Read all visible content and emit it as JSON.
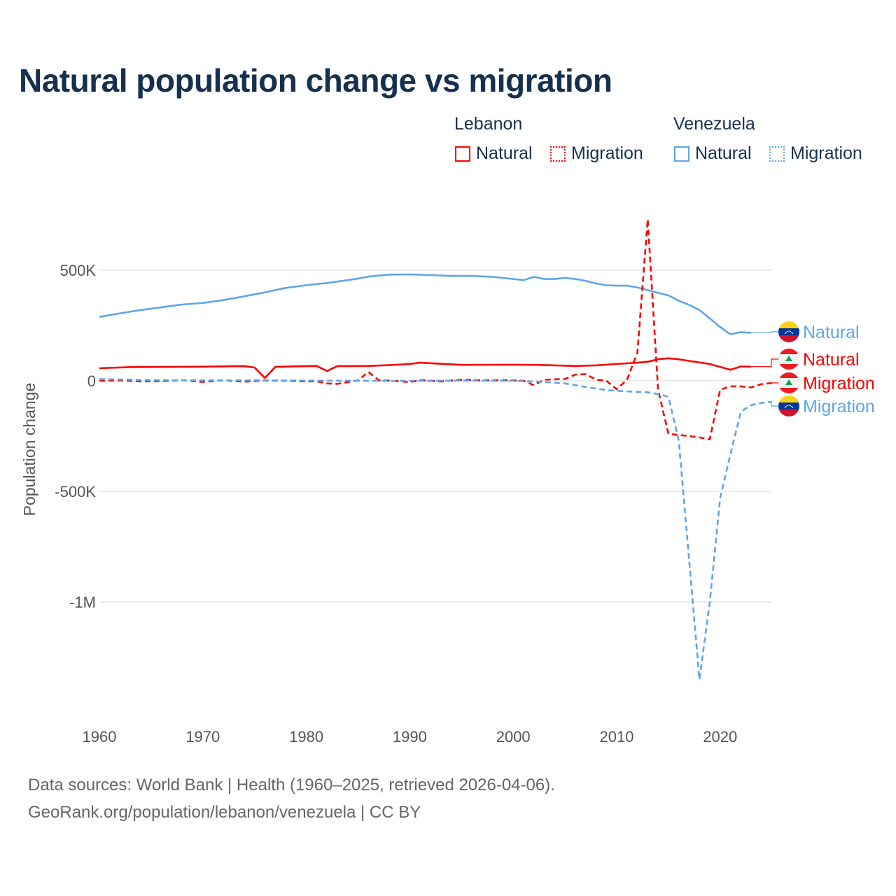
{
  "chart_data": {
    "type": "line",
    "title": "Natural population change vs migration",
    "xlabel": "",
    "ylabel": "Population change",
    "xlim": [
      1960,
      2025
    ],
    "ylim": [
      -1450000,
      800000
    ],
    "x_ticks": [
      1960,
      1970,
      1980,
      1990,
      2000,
      2010,
      2020
    ],
    "x_tick_labels": [
      "1960",
      "1970",
      "1980",
      "1990",
      "2000",
      "2010",
      "2020"
    ],
    "y_ticks": [
      500000,
      0,
      -500000,
      -1000000
    ],
    "y_tick_labels": [
      "500K",
      "0",
      "-500K",
      "-1M"
    ],
    "grid": true,
    "legend": {
      "placement": "top-right",
      "groups": [
        {
          "name": "Lebanon",
          "items": [
            "Natural",
            "Migration"
          ]
        },
        {
          "name": "Venezuela",
          "items": [
            "Natural",
            "Migration"
          ]
        }
      ]
    },
    "series": [
      {
        "country": "Venezuela",
        "name": "Natural",
        "color": "#5ea5ea",
        "dash": false,
        "flag": "venezuela",
        "points": [
          [
            1960,
            289000
          ],
          [
            1962,
            305000
          ],
          [
            1964,
            320000
          ],
          [
            1966,
            332000
          ],
          [
            1968,
            345000
          ],
          [
            1970,
            352000
          ],
          [
            1972,
            365000
          ],
          [
            1974,
            382000
          ],
          [
            1976,
            400000
          ],
          [
            1978,
            420000
          ],
          [
            1980,
            432000
          ],
          [
            1982,
            442000
          ],
          [
            1984,
            455000
          ],
          [
            1985,
            462000
          ],
          [
            1986,
            471000
          ],
          [
            1988,
            480000
          ],
          [
            1990,
            481000
          ],
          [
            1992,
            478000
          ],
          [
            1994,
            474000
          ],
          [
            1996,
            474000
          ],
          [
            1998,
            470000
          ],
          [
            2000,
            460000
          ],
          [
            2001,
            455000
          ],
          [
            2002,
            470000
          ],
          [
            2003,
            460000
          ],
          [
            2004,
            460000
          ],
          [
            2005,
            465000
          ],
          [
            2006,
            460000
          ],
          [
            2007,
            452000
          ],
          [
            2008,
            440000
          ],
          [
            2009,
            432000
          ],
          [
            2010,
            430000
          ],
          [
            2011,
            430000
          ],
          [
            2012,
            422000
          ],
          [
            2013,
            410000
          ],
          [
            2014,
            398000
          ],
          [
            2015,
            386000
          ],
          [
            2016,
            362000
          ],
          [
            2017,
            343000
          ],
          [
            2018,
            320000
          ],
          [
            2019,
            282000
          ],
          [
            2020,
            243000
          ],
          [
            2021,
            210000
          ],
          [
            2022,
            220000
          ],
          [
            2023,
            217000
          ]
        ]
      },
      {
        "country": "Lebanon",
        "name": "Natural",
        "color": "#ff0000",
        "dash": false,
        "flag": "lebanon",
        "points": [
          [
            1960,
            57000
          ],
          [
            1963,
            62000
          ],
          [
            1970,
            64000
          ],
          [
            1974,
            66000
          ],
          [
            1975,
            60000
          ],
          [
            1976,
            13000
          ],
          [
            1977,
            63000
          ],
          [
            1980,
            66000
          ],
          [
            1981,
            67000
          ],
          [
            1982,
            44000
          ],
          [
            1983,
            66000
          ],
          [
            1986,
            67000
          ],
          [
            1988,
            71000
          ],
          [
            1990,
            76000
          ],
          [
            1991,
            82000
          ],
          [
            1993,
            77000
          ],
          [
            1995,
            72000
          ],
          [
            2000,
            73000
          ],
          [
            2002,
            72000
          ],
          [
            2004,
            70000
          ],
          [
            2006,
            67000
          ],
          [
            2008,
            70000
          ],
          [
            2010,
            76000
          ],
          [
            2012,
            82000
          ],
          [
            2013,
            86000
          ],
          [
            2014,
            97000
          ],
          [
            2015,
            102000
          ],
          [
            2016,
            97000
          ],
          [
            2017,
            90000
          ],
          [
            2018,
            83000
          ],
          [
            2019,
            76000
          ],
          [
            2020,
            63000
          ],
          [
            2021,
            50000
          ],
          [
            2022,
            65000
          ],
          [
            2023,
            64000
          ]
        ]
      },
      {
        "country": "Lebanon",
        "name": "Migration",
        "color": "#ff0000",
        "dash": true,
        "flag": "lebanon",
        "points": [
          [
            1960,
            0
          ],
          [
            1962,
            2000
          ],
          [
            1964,
            -3000
          ],
          [
            1966,
            -2000
          ],
          [
            1968,
            3000
          ],
          [
            1970,
            -5000
          ],
          [
            1972,
            2000
          ],
          [
            1974,
            -4000
          ],
          [
            1976,
            1000
          ],
          [
            1978,
            0
          ],
          [
            1980,
            -3000
          ],
          [
            1981,
            -2000
          ],
          [
            1982,
            -12000
          ],
          [
            1983,
            -14000
          ],
          [
            1985,
            2000
          ],
          [
            1986,
            40000
          ],
          [
            1987,
            3000
          ],
          [
            1989,
            -2000
          ],
          [
            1990,
            -6000
          ],
          [
            1991,
            3000
          ],
          [
            1993,
            -3000
          ],
          [
            1995,
            5000
          ],
          [
            1997,
            2000
          ],
          [
            1999,
            3000
          ],
          [
            2001,
            0
          ],
          [
            2002,
            -20000
          ],
          [
            2003,
            5000
          ],
          [
            2005,
            8000
          ],
          [
            2006,
            28000
          ],
          [
            2007,
            30000
          ],
          [
            2008,
            5000
          ],
          [
            2009,
            0
          ],
          [
            2010,
            -38000
          ],
          [
            2011,
            5000
          ],
          [
            2012,
            128000
          ],
          [
            2013,
            730000
          ],
          [
            2014,
            -40000
          ],
          [
            2015,
            -240000
          ],
          [
            2016,
            -245000
          ],
          [
            2017,
            -250000
          ],
          [
            2018,
            -256000
          ],
          [
            2019,
            -265000
          ],
          [
            2020,
            -40000
          ],
          [
            2021,
            -25000
          ],
          [
            2022,
            -25000
          ],
          [
            2023,
            -30000
          ],
          [
            2024,
            -15000
          ],
          [
            2025,
            -10000
          ]
        ]
      },
      {
        "country": "Venezuela",
        "name": "Migration",
        "color": "#5ea5ea",
        "dash": true,
        "flag": "venezuela",
        "points": [
          [
            1960,
            8000
          ],
          [
            1965,
            3000
          ],
          [
            1970,
            2000
          ],
          [
            1975,
            2000
          ],
          [
            1980,
            1000
          ],
          [
            1985,
            0
          ],
          [
            1990,
            0
          ],
          [
            1995,
            1000
          ],
          [
            2000,
            0
          ],
          [
            2003,
            -5000
          ],
          [
            2005,
            -12000
          ],
          [
            2007,
            -28000
          ],
          [
            2009,
            -42000
          ],
          [
            2011,
            -48000
          ],
          [
            2013,
            -52000
          ],
          [
            2014,
            -60000
          ],
          [
            2015,
            -72000
          ],
          [
            2016,
            -270000
          ],
          [
            2017,
            -810000
          ],
          [
            2018,
            -1350000
          ],
          [
            2019,
            -1000000
          ],
          [
            2020,
            -530000
          ],
          [
            2021,
            -330000
          ],
          [
            2022,
            -140000
          ],
          [
            2023,
            -110000
          ],
          [
            2024,
            -100000
          ],
          [
            2025,
            -95000
          ]
        ]
      }
    ],
    "end_labels": [
      "Natural",
      "Natural",
      "Migration",
      "Migration"
    ]
  },
  "footer": {
    "line1": "Data sources: World Bank | Health (1960–2025, retrieved 2026-04-06).",
    "line2": "GeoRank.org/population/lebanon/venezuela | CC BY"
  }
}
